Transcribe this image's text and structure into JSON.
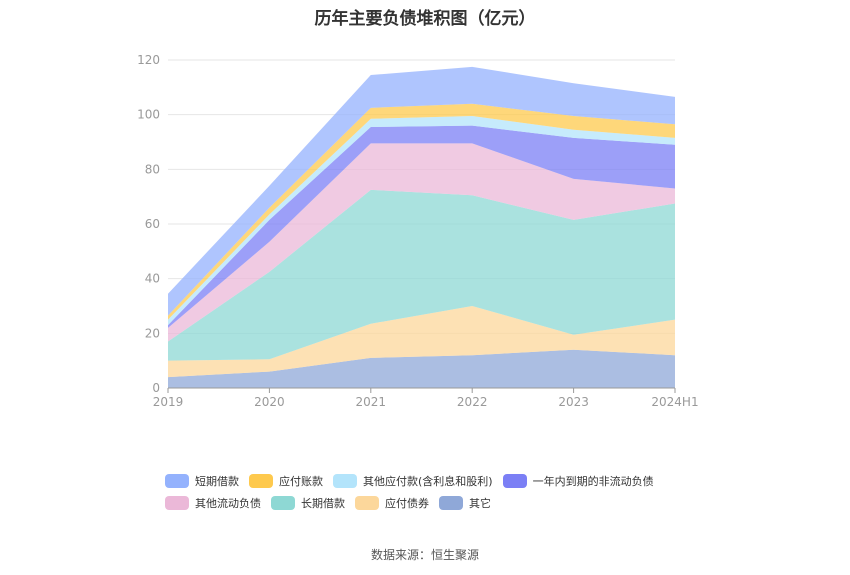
{
  "title": "历年主要负债堆积图（亿元）",
  "source": "数据来源：恒生聚源",
  "chart_data": {
    "type": "area",
    "stacked": true,
    "x": [
      "2019",
      "2020",
      "2021",
      "2022",
      "2023",
      "2024H1"
    ],
    "ylim": [
      0,
      120
    ],
    "yticks": [
      0,
      20,
      40,
      60,
      80,
      100,
      120
    ],
    "grid": true,
    "legend_position": "bottom",
    "series": [
      {
        "name": "其它",
        "color": "#8fa8d8",
        "values": [
          4,
          6,
          11,
          12,
          14,
          12
        ]
      },
      {
        "name": "应付债券",
        "color": "#fcd79b",
        "values": [
          6,
          4.5,
          12.5,
          18,
          5.5,
          13
        ]
      },
      {
        "name": "长期借款",
        "color": "#8ed8d4",
        "values": [
          7,
          32,
          49,
          40.5,
          42,
          42.5
        ]
      },
      {
        "name": "其他流动负债",
        "color": "#ebb8d8",
        "values": [
          5,
          11,
          17,
          19,
          15,
          5.5
        ]
      },
      {
        "name": "一年内到期的非流动负债",
        "color": "#7b7ff5",
        "values": [
          1,
          8,
          6,
          6.5,
          15,
          16
        ]
      },
      {
        "name": "其他应付款(含利息和股利)",
        "color": "#b3e4fb",
        "values": [
          2,
          2,
          3,
          3.5,
          3,
          2.5
        ]
      },
      {
        "name": "应付账款",
        "color": "#fec94d",
        "values": [
          1.5,
          2.5,
          4,
          4.5,
          5,
          5
        ]
      },
      {
        "name": "短期借款",
        "color": "#94b2fd",
        "values": [
          8,
          8,
          12,
          13.5,
          12,
          10
        ]
      }
    ],
    "legend_order": [
      "短期借款",
      "应付账款",
      "其他应付款(含利息和股利)",
      "一年内到期的非流动负债",
      "其他流动负债",
      "长期借款",
      "应付债券",
      "其它"
    ]
  }
}
